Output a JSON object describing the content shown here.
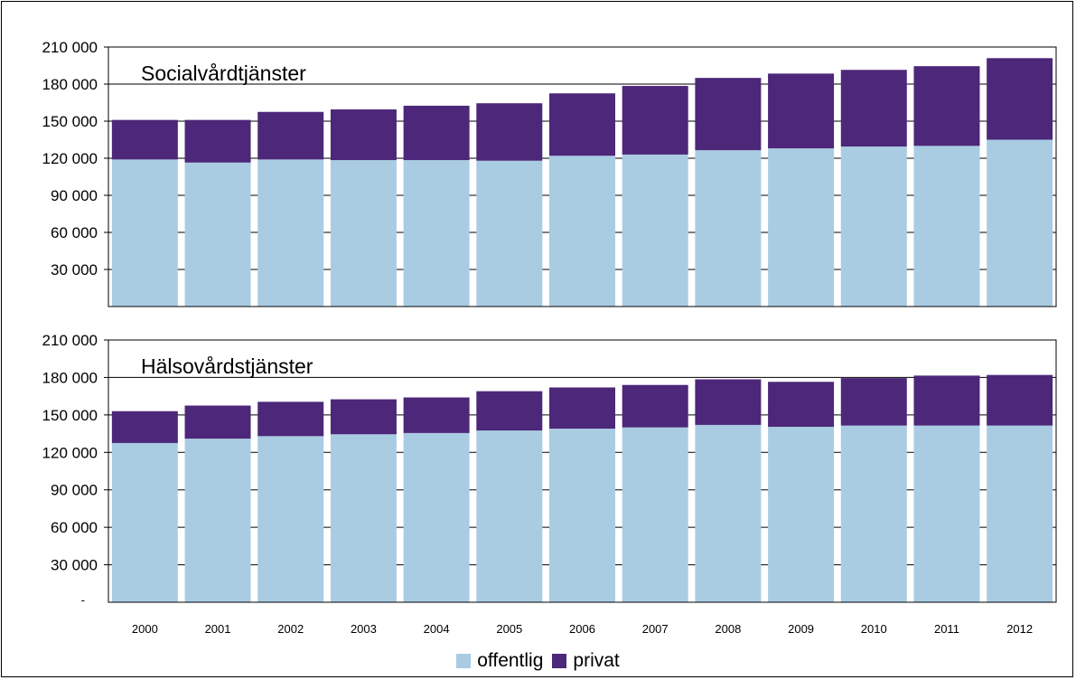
{
  "chart_data": {
    "type": "bar",
    "stacked": true,
    "categories": [
      "2000",
      "2001",
      "2002",
      "2003",
      "2004",
      "2005",
      "2006",
      "2007",
      "2008",
      "2009",
      "2010",
      "2011",
      "2012"
    ],
    "legend": {
      "placement": "bottom-center",
      "items": [
        {
          "label": "offentlig",
          "color": "#a9cce3"
        },
        {
          "label": "privat",
          "color": "#4d2779"
        }
      ]
    },
    "ylim": [
      0,
      210000
    ],
    "yticks": [
      {
        "value": 210000,
        "label": "210 000"
      },
      {
        "value": 180000,
        "label": "180 000"
      },
      {
        "value": 150000,
        "label": "150 000"
      },
      {
        "value": 120000,
        "label": "120 000"
      },
      {
        "value": 90000,
        "label": "90 000"
      },
      {
        "value": 60000,
        "label": "60 000"
      },
      {
        "value": 30000,
        "label": "30 000"
      }
    ],
    "zero_tick_label": "-",
    "grid": true,
    "panels": [
      {
        "title": "Socialvårdtjänster",
        "series": [
          {
            "name": "offentlig",
            "color": "#a9cce3",
            "values": [
              119000,
              116500,
              119000,
              118500,
              118500,
              118000,
              122000,
              123000,
              126500,
              128000,
              129500,
              130000,
              135000
            ]
          },
          {
            "name": "privat",
            "color": "#4d2779",
            "values": [
              32000,
              34500,
              38500,
              41000,
              44000,
              46500,
              50500,
              55500,
              58500,
              60500,
              62000,
              64500,
              66000
            ]
          }
        ]
      },
      {
        "title": "Hälsovårdstjänster",
        "series": [
          {
            "name": "offentlig",
            "color": "#a9cce3",
            "values": [
              127500,
              131000,
              133000,
              134500,
              135500,
              137500,
              139000,
              140000,
              142000,
              140500,
              141500,
              141500,
              141500
            ]
          },
          {
            "name": "privat",
            "color": "#4d2779",
            "values": [
              25500,
              26500,
              27500,
              28000,
              28500,
              31500,
              33000,
              34000,
              36500,
              36000,
              38000,
              40000,
              40500
            ]
          }
        ]
      }
    ]
  }
}
